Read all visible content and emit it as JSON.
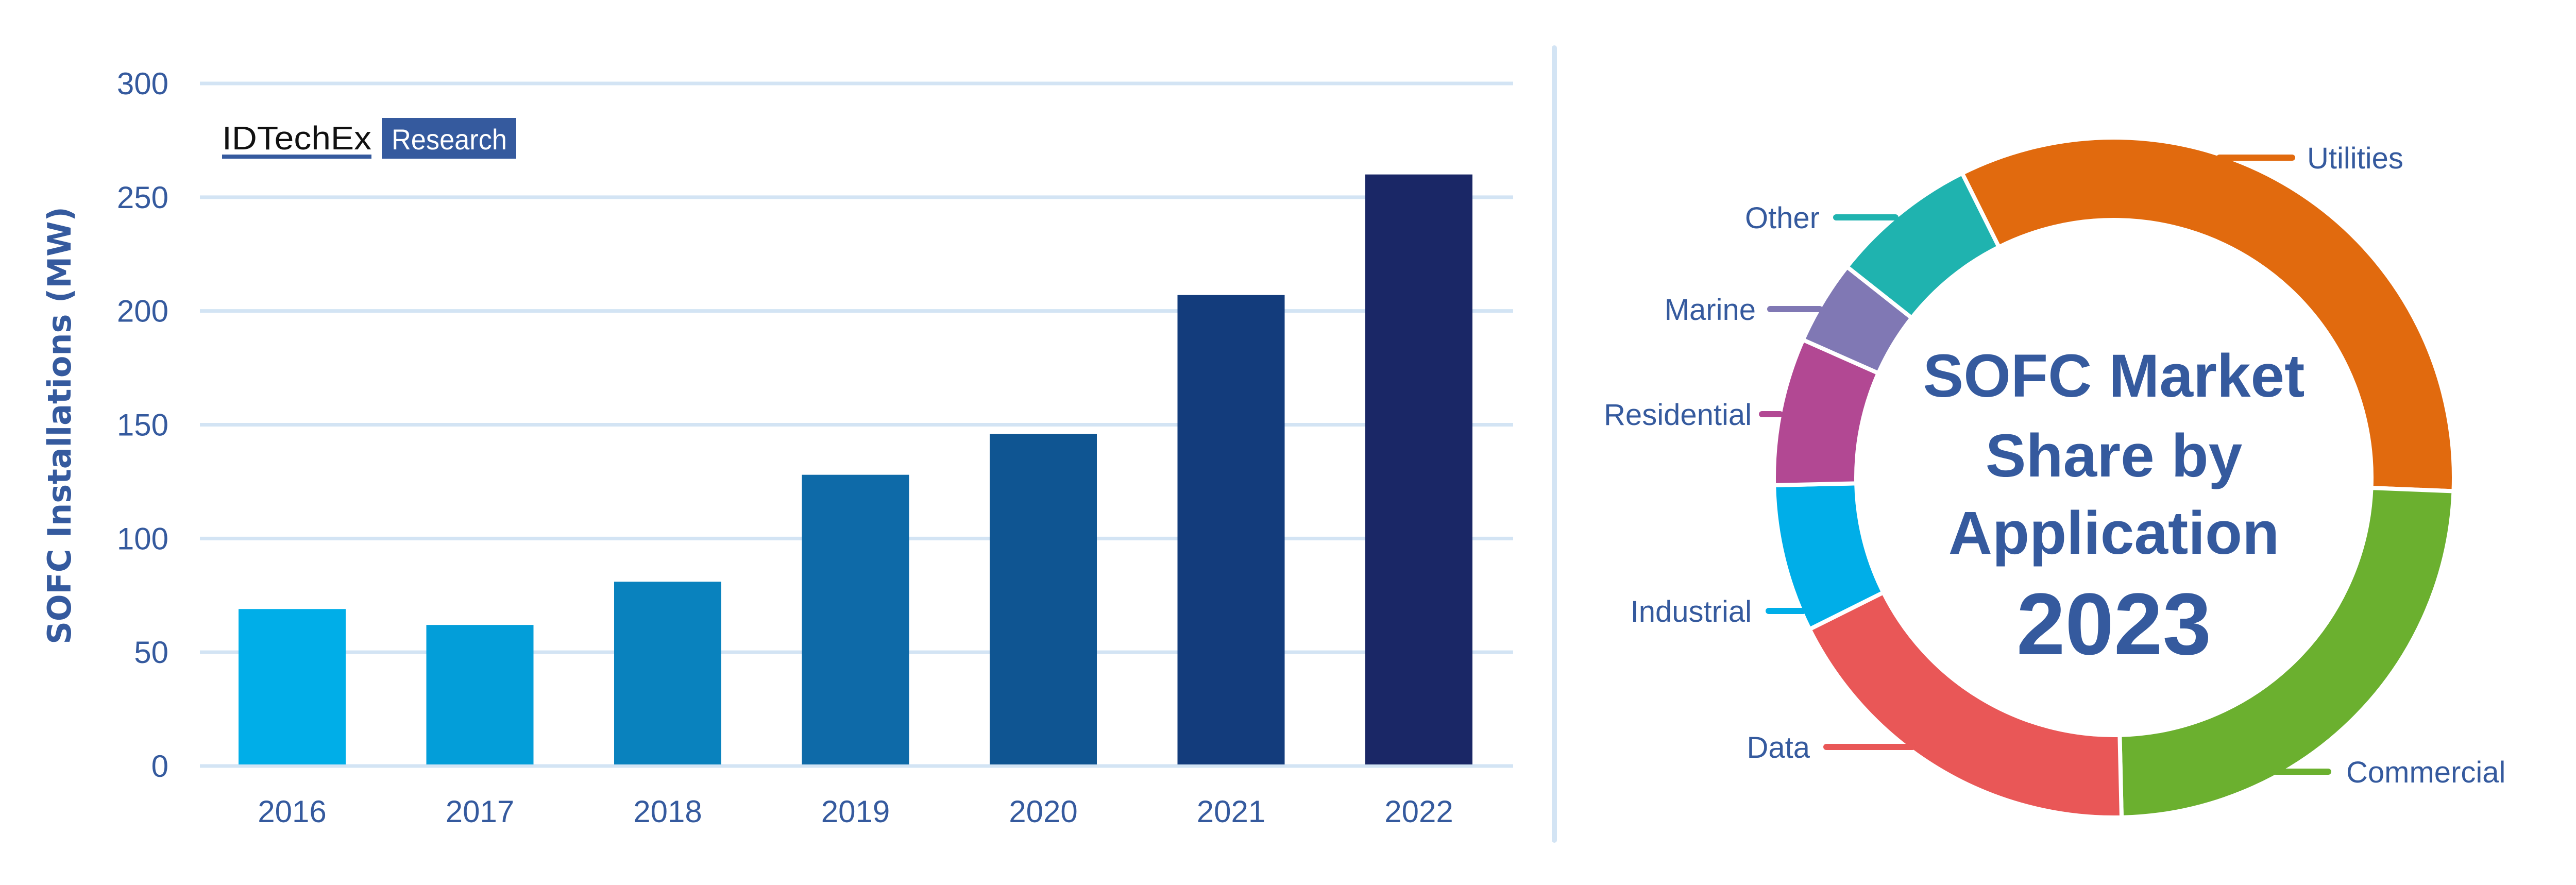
{
  "logo": {
    "brand": "IDTechEx",
    "tag": "Research"
  },
  "chart_data": [
    {
      "type": "bar",
      "title": "",
      "xlabel": "",
      "ylabel": "SOFC Installations (MW)",
      "ylim": [
        0,
        300
      ],
      "yticks": [
        "0",
        "50",
        "100",
        "150",
        "200",
        "250",
        "300"
      ],
      "grid": true,
      "categories": [
        "2016",
        "2017",
        "2018",
        "2019",
        "2020",
        "2021",
        "2022"
      ],
      "values": [
        69,
        62,
        81,
        128,
        146,
        207,
        260
      ],
      "colors": [
        "#00AEE8",
        "#039ED9",
        "#0982BE",
        "#0E6AA8",
        "#0F5592",
        "#133C7C",
        "#1A2766"
      ]
    },
    {
      "type": "pie",
      "donut": true,
      "title": "SOFC Market Share by Application 2023",
      "title_lines": [
        "SOFC Market",
        "Share by",
        "Application",
        "2023"
      ],
      "categories": [
        "Utilities",
        "Commercial",
        "Data",
        "Industrial",
        "Residential",
        "Marine",
        "Other"
      ],
      "values": [
        33,
        24,
        18,
        7,
        7,
        4,
        7
      ],
      "colors": [
        "#E16A0E",
        "#6BB02F",
        "#E95757",
        "#00AEE8",
        "#B24893",
        "#8078B4",
        "#1FB3AF"
      ]
    }
  ]
}
